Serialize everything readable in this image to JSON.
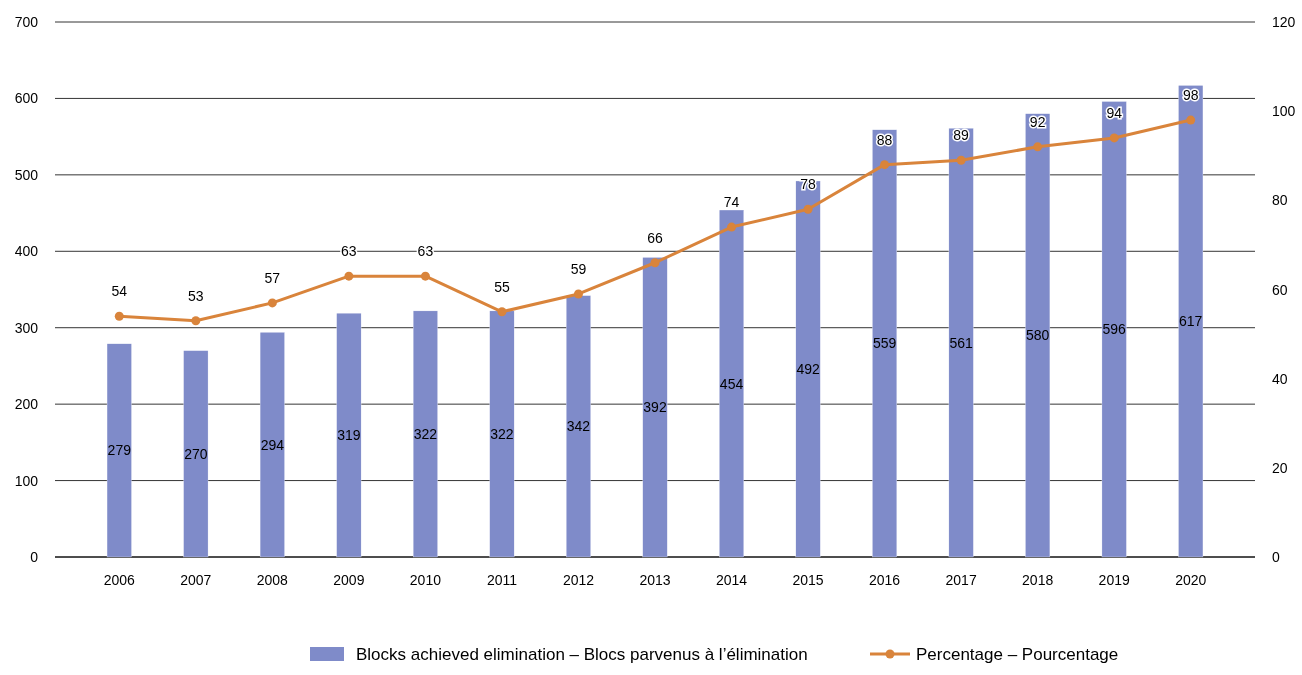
{
  "chart_data": {
    "type": "bar",
    "categories": [
      "2006",
      "2007",
      "2008",
      "2009",
      "2010",
      "2011",
      "2012",
      "2013",
      "2014",
      "2015",
      "2016",
      "2017",
      "2018",
      "2019",
      "2020"
    ],
    "series": [
      {
        "name": "Blocks achieved elimination – Blocs parvenus à l’élimination",
        "color": "#7f8bc9",
        "values": [
          279,
          270,
          294,
          319,
          322,
          322,
          342,
          392,
          454,
          492,
          559,
          561,
          580,
          596,
          617
        ]
      },
      {
        "name": "Percentage – Pourcentage",
        "type": "line",
        "axis": "y2",
        "color": "#d9843b",
        "values": [
          54,
          53,
          57,
          63,
          63,
          55,
          59,
          66,
          74,
          78,
          88,
          89,
          92,
          94,
          98
        ]
      }
    ],
    "ylim": [
      0,
      700
    ],
    "yticks": [
      0,
      100,
      200,
      300,
      400,
      500,
      600,
      700
    ],
    "y2lim": [
      0,
      120
    ],
    "y2ticks": [
      0,
      20,
      40,
      60,
      80,
      100,
      120
    ],
    "grid": "y",
    "legend": "bottom",
    "marker": "circle",
    "line_style": "solid",
    "data_labels": true
  }
}
